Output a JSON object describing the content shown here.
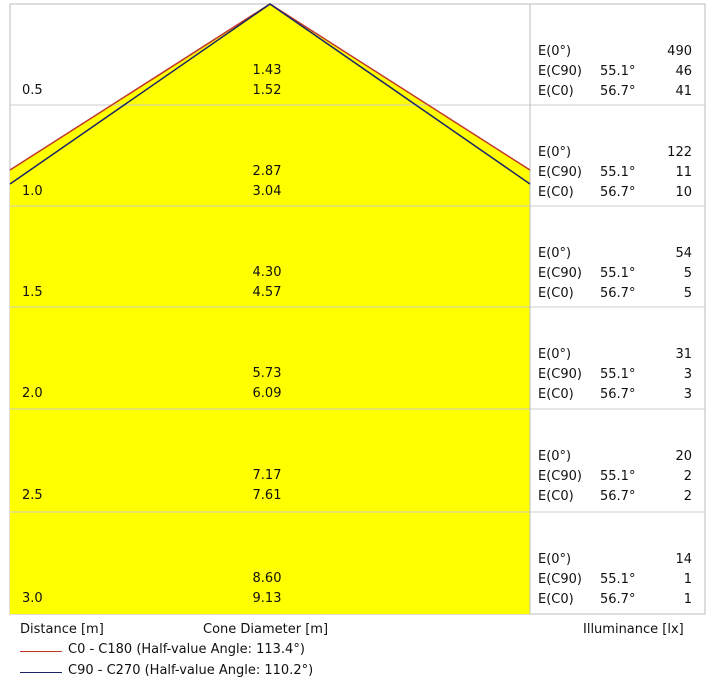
{
  "labels": {
    "distance": "Distance [m]",
    "cone_diameter": "Cone Diameter [m]",
    "illuminance": "Illuminance [lx]"
  },
  "legend": [
    {
      "text": "C0 - C180 (Half-value Angle: 113.4°)",
      "color": "#c0392b"
    },
    {
      "text": "C90 - C270 (Half-value Angle: 110.2°)",
      "color": "#1a2466"
    }
  ],
  "rows": [
    {
      "distance": "0.5",
      "d1": "1.43",
      "d2": "1.52",
      "e0_label": "E(0°)",
      "e0": "490",
      "ec90_label": "E(C90)",
      "ec90_angle": "55.1°",
      "ec90": "46",
      "ec0_label": "E(C0)",
      "ec0_angle": "56.7°",
      "ec0": "41"
    },
    {
      "distance": "1.0",
      "d1": "2.87",
      "d2": "3.04",
      "e0_label": "E(0°)",
      "e0": "122",
      "ec90_label": "E(C90)",
      "ec90_angle": "55.1°",
      "ec90": "11",
      "ec0_label": "E(C0)",
      "ec0_angle": "56.7°",
      "ec0": "10"
    },
    {
      "distance": "1.5",
      "d1": "4.30",
      "d2": "4.57",
      "e0_label": "E(0°)",
      "e0": "54",
      "ec90_label": "E(C90)",
      "ec90_angle": "55.1°",
      "ec90": "5",
      "ec0_label": "E(C0)",
      "ec0_angle": "56.7°",
      "ec0": "5"
    },
    {
      "distance": "2.0",
      "d1": "5.73",
      "d2": "6.09",
      "e0_label": "E(0°)",
      "e0": "31",
      "ec90_label": "E(C90)",
      "ec90_angle": "55.1°",
      "ec90": "3",
      "ec0_label": "E(C0)",
      "ec0_angle": "56.7°",
      "ec0": "3"
    },
    {
      "distance": "2.5",
      "d1": "7.17",
      "d2": "7.61",
      "e0_label": "E(0°)",
      "e0": "20",
      "ec90_label": "E(C90)",
      "ec90_angle": "55.1°",
      "ec90": "2",
      "ec0_label": "E(C0)",
      "ec0_angle": "56.7°",
      "ec0": "2"
    },
    {
      "distance": "3.0",
      "d1": "8.60",
      "d2": "9.13",
      "e0_label": "E(0°)",
      "e0": "14",
      "ec90_label": "E(C90)",
      "ec90_angle": "55.1°",
      "ec90": "1",
      "ec0_label": "E(C0)",
      "ec0_angle": "56.7°",
      "ec0": "1"
    }
  ],
  "colors": {
    "cone_fill": "#ffff00",
    "grid": "#cccccc"
  }
}
